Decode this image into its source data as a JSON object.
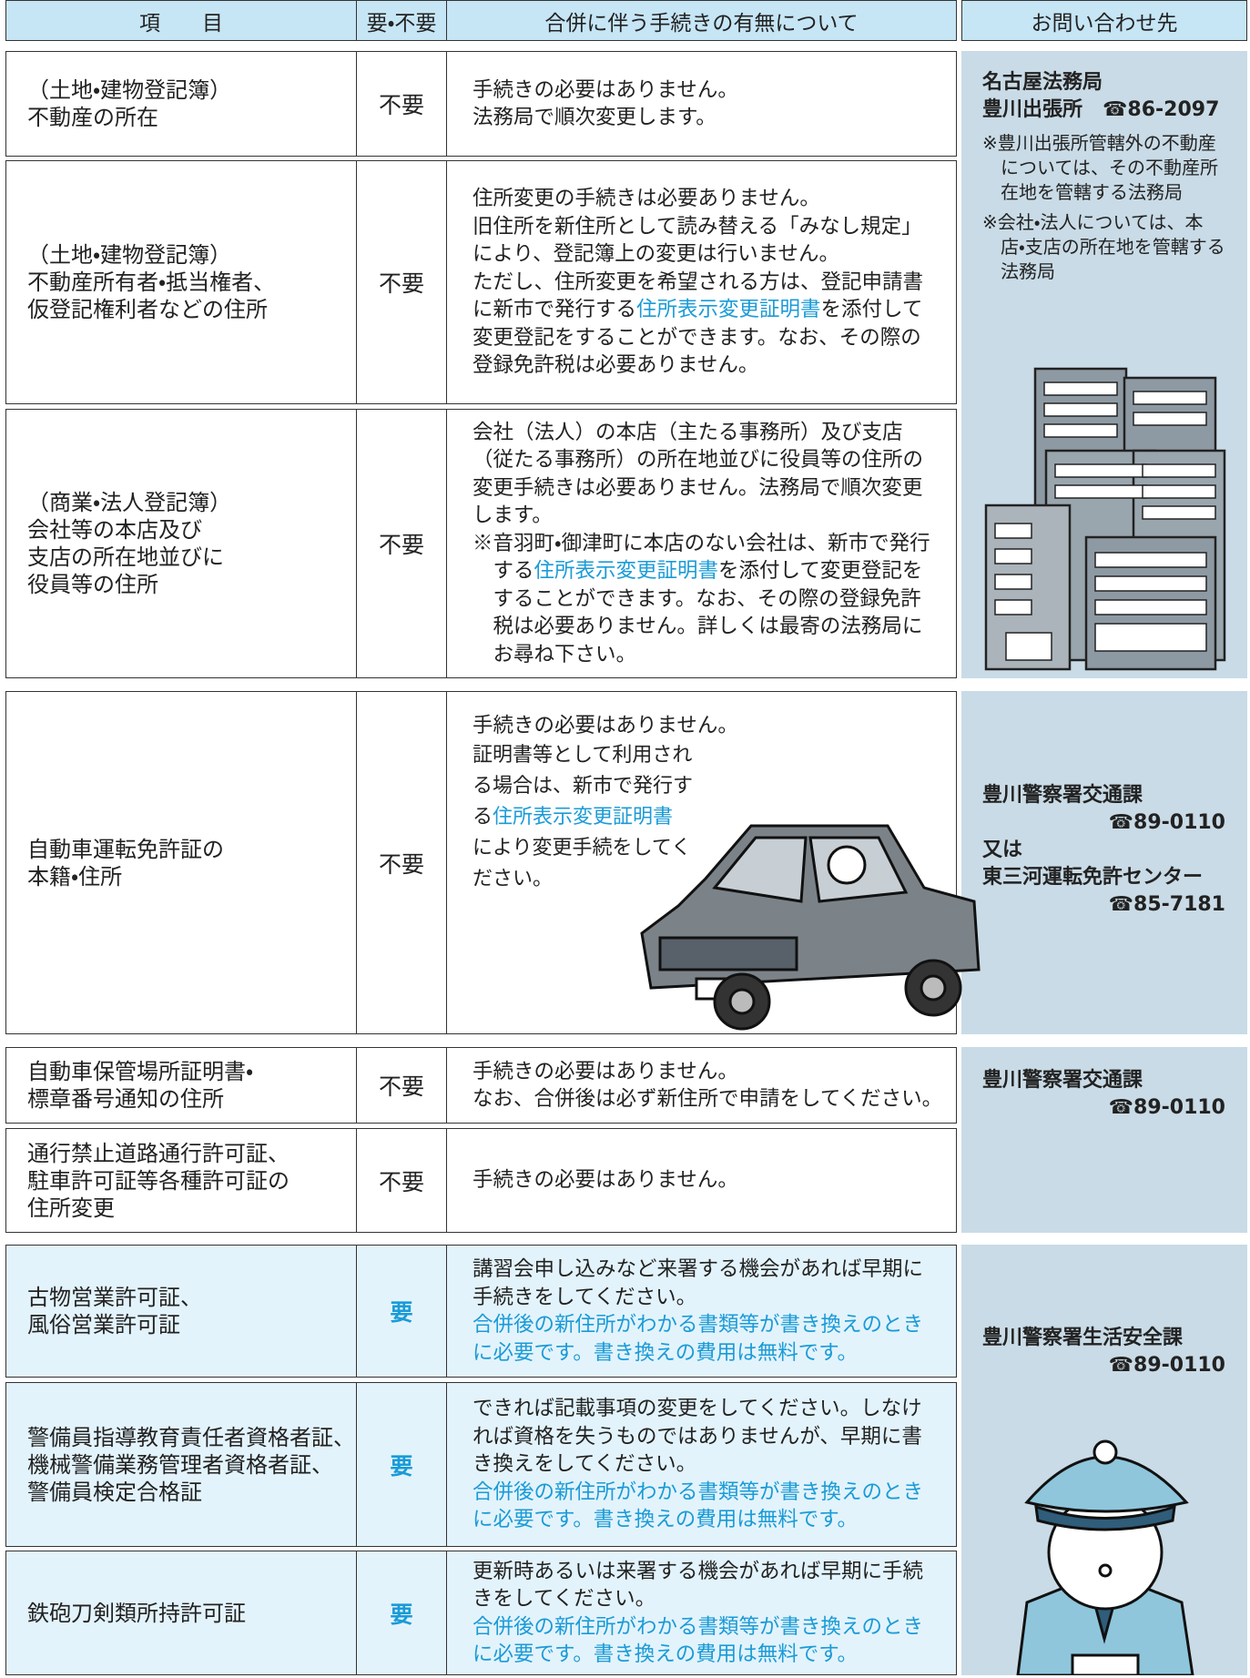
{
  "header": [
    "項　　目",
    "要・不要",
    "合併に伴う手続きの有無について",
    "お問い合わせ先"
  ],
  "rows": [
    {
      "item": [
        "（土地・建物登記簿）",
        "不動産の所在"
      ],
      "need": "不要",
      "procedure": [
        "手続きの必要はありません。",
        "法務局で順次変更します。"
      ]
    },
    {
      "item": [
        "（土地・建物登記簿）",
        "不動産所有者・抵当権者、",
        "仮登記権利者などの住所"
      ],
      "need": "不要",
      "procedure": [
        "住所変更の手続きは必要ありません。",
        "旧住所を新住所として読み替える「みなし規定」により、登記簿上の変更は行いません。",
        "ただし、住所変更を希望される方は、登記申請書に新市で発行する",
        "住所表示変更証明書",
        "を添付して変更登記をすることができます。なお、その際の登録免許税は必要ありません。"
      ]
    },
    {
      "item": [
        "（商業・法人登記簿）",
        "会社等の本店及び",
        "支店の所在地並びに",
        "役員等の住所"
      ],
      "need": "不要",
      "procedure": [
        "会社（法人）の本店（主たる事務所）及び支店（従たる事務所）の所在地並びに役員等の住所",
        "の変更手続きは必要ありません。",
        "法務局で順次変更します。",
        "※音羽町・御津町に本店のない会社は、新市で発行する",
        "住所表示変更証明書",
        "を添付して変更登記をすることができます。なお、その際の登録免許税は必要ありません。詳しくは最寄の法務局にお尋ね下さい。"
      ]
    },
    {
      "item": [
        "自動車運転免許証の",
        "本籍・住所"
      ],
      "need": "不要",
      "procedure": [
        "手続きの必要はありません。",
        "証明書等として利用される場合は、新市で発行する",
        "住所表示変更証明書",
        "により変更手続をしてください。"
      ]
    },
    {
      "item": [
        "自動車保管場所証明書・",
        "標章番号通知の住所"
      ],
      "need": "不要",
      "procedure": [
        "手続きの必要はありません。",
        "なお、合併後は必ず新住所で申請をしてください。"
      ]
    },
    {
      "item": [
        "通行禁止道路通行許可証、",
        "駐車許可証等各種許可証の",
        "住所変更"
      ],
      "need": "不要",
      "procedure": [
        "手続きの必要はありません。"
      ]
    },
    {
      "item": [
        "古物営業許可証、",
        "風俗営業許可証"
      ],
      "need": "要",
      "procedure": [
        "講習会申し込みなど来署する機会があれば",
        "早期に手続きをしてください。",
        "合併後の新住所がわかる書類等が書き換えのときに必要です。書き換えの費用は無料です。"
      ]
    },
    {
      "item": [
        "警備員指導教育責任者資格者証、",
        "機械警備業務管理者資格者証、",
        "警備員検定合格証"
      ],
      "need": "要",
      "procedure": [
        "できれば記載事項の変更をしてください。しなければ資格を失うものではありませんが、早期に書き換えをしてください。",
        "合併後の新住所がわかる書類等が書き換えのときに必要です。書き換えの費用は無料です。"
      ]
    },
    {
      "item": [
        "鉄砲刀剣類所持許可証"
      ],
      "need": "要",
      "procedure": [
        "更新時あるいは来署する機会があれば",
        "早期に手続きをしてください。",
        "合併後の新住所がわかる書類等が書き換えのときに必要です。書き換えの費用は無料です。"
      ]
    }
  ],
  "contacts": [
    {
      "lines": [
        "名古屋法務局",
        "豊川出張所　☎86-2097"
      ],
      "notes": [
        "※豊川出張所管轄外の不動産については、その不動産所在地を管轄する法務局",
        "※会社・法人については、本店・支店の所在地を管轄する法務局"
      ]
    },
    {
      "lines": [
        "豊川警察署交通課",
        "☎89-0110",
        "又は",
        "東三河運転免許センター",
        "☎85-7181"
      ]
    },
    {
      "lines": [
        "豊川警察署交通課",
        "☎89-0110"
      ]
    },
    {
      "lines": [
        "豊川警察署生活安全課",
        "☎89-0110"
      ]
    }
  ]
}
